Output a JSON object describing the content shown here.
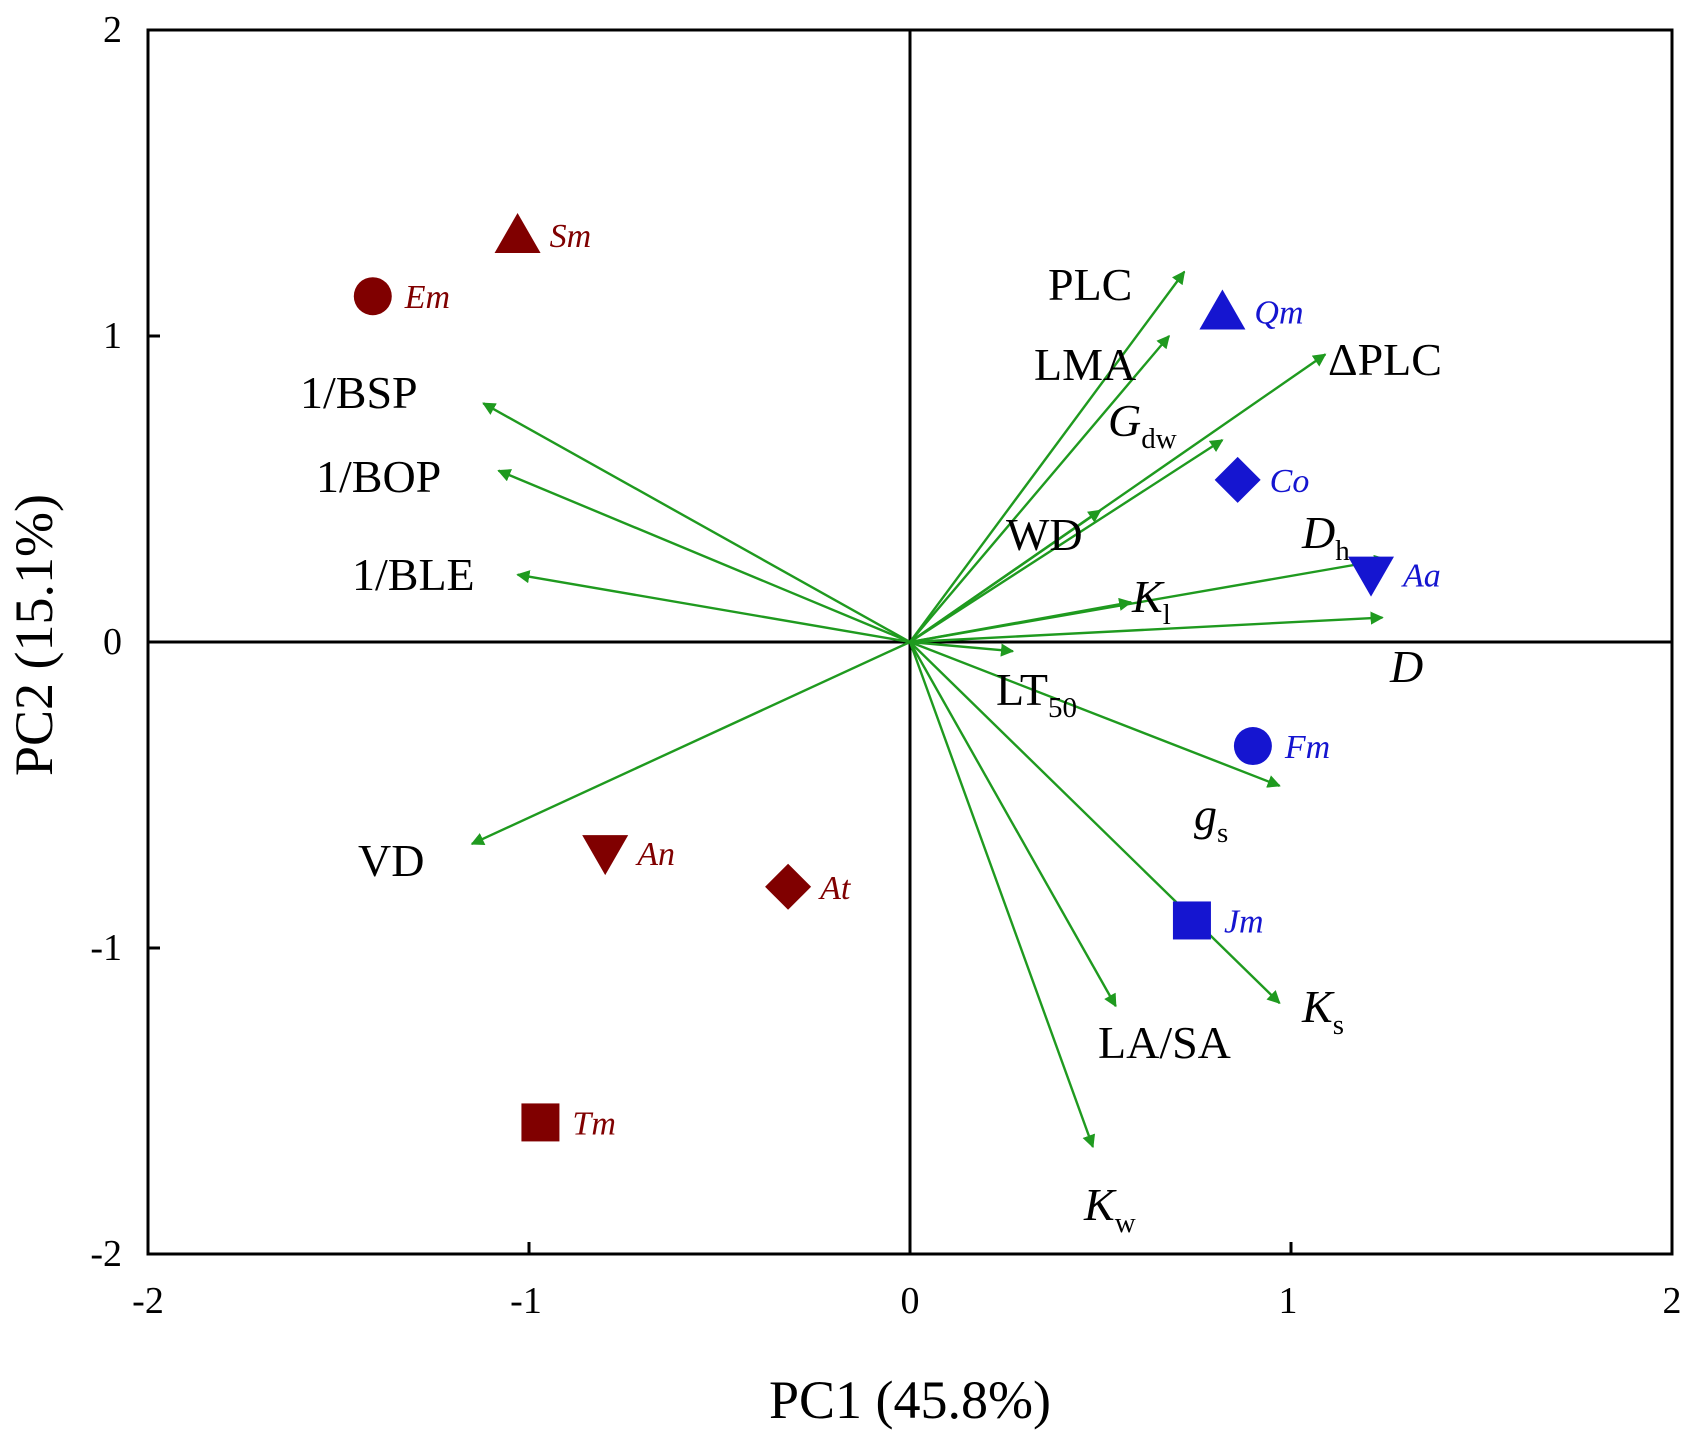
{
  "chart_data": {
    "type": "scatter",
    "xlabel": "PC1 (45.8%)",
    "ylabel": "PC2 (15.1%)",
    "xlim": [
      -2,
      2
    ],
    "ylim": [
      -2,
      2
    ],
    "xticks": [
      "-2",
      "-1",
      "0",
      "1",
      "2"
    ],
    "yticks": [
      "2",
      "1",
      "0",
      "-1",
      "-2"
    ],
    "colors": {
      "arrow": "#1f9a1f",
      "group_dark_red": "#800000",
      "group_blue": "#1515d0"
    },
    "species": [
      {
        "label": "Sm",
        "x": -1.03,
        "y": 1.33,
        "marker": "triangle-up",
        "color": "#800000"
      },
      {
        "label": "Em",
        "x": -1.41,
        "y": 1.13,
        "marker": "circle",
        "color": "#800000"
      },
      {
        "label": "An",
        "x": -0.8,
        "y": -0.69,
        "marker": "triangle-down",
        "color": "#800000"
      },
      {
        "label": "At",
        "x": -0.32,
        "y": -0.8,
        "marker": "diamond",
        "color": "#800000"
      },
      {
        "label": "Tm",
        "x": -0.97,
        "y": -1.57,
        "marker": "square",
        "color": "#800000"
      },
      {
        "label": "Qm",
        "x": 0.82,
        "y": 1.08,
        "marker": "triangle-up",
        "color": "#1515d0"
      },
      {
        "label": "Co",
        "x": 0.86,
        "y": 0.53,
        "marker": "diamond",
        "color": "#1515d0"
      },
      {
        "label": "Aa",
        "x": 1.21,
        "y": 0.22,
        "marker": "triangle-down",
        "color": "#1515d0"
      },
      {
        "label": "Fm",
        "x": 0.9,
        "y": -0.34,
        "marker": "circle",
        "color": "#1515d0"
      },
      {
        "label": "Jm",
        "x": 0.74,
        "y": -0.91,
        "marker": "square",
        "color": "#1515d0"
      }
    ],
    "loadings": [
      {
        "name": "PLC",
        "x": 0.72,
        "y": 1.21
      },
      {
        "name": "LMA",
        "x": 0.68,
        "y": 1.0
      },
      {
        "name": "ΔPLC",
        "x": 1.09,
        "y": 0.94
      },
      {
        "name": "Gdw",
        "x": 0.82,
        "y": 0.66
      },
      {
        "name": "WD",
        "x": 0.5,
        "y": 0.43
      },
      {
        "name": "Dh",
        "x": 1.25,
        "y": 0.27
      },
      {
        "name": "Kl",
        "x": 0.58,
        "y": 0.13
      },
      {
        "name": "D",
        "x": 1.24,
        "y": 0.08
      },
      {
        "name": "LT50",
        "x": 0.27,
        "y": -0.03
      },
      {
        "name": "gs",
        "x": 0.97,
        "y": -0.47
      },
      {
        "name": "Ks",
        "x": 0.97,
        "y": -1.18
      },
      {
        "name": "LA/SA",
        "x": 0.54,
        "y": -1.19
      },
      {
        "name": "Kw",
        "x": 0.48,
        "y": -1.65
      },
      {
        "name": "1/BSP",
        "x": -1.12,
        "y": 0.78
      },
      {
        "name": "1/BOP",
        "x": -1.08,
        "y": 0.56
      },
      {
        "name": "1/BLE",
        "x": -1.03,
        "y": 0.22
      },
      {
        "name": "VD",
        "x": -1.15,
        "y": -0.66
      }
    ],
    "variable_labels": [
      {
        "main": "PLC",
        "sub": "",
        "italic": false
      },
      {
        "main": "LMA",
        "sub": "",
        "italic": false
      },
      {
        "main": "ΔPLC",
        "sub": "",
        "italic": false
      },
      {
        "main": "G",
        "sub": "dw",
        "italic": true
      },
      {
        "main": "WD",
        "sub": "",
        "italic": false
      },
      {
        "main": "D",
        "sub": "h",
        "italic": true
      },
      {
        "main": "K",
        "sub": "l",
        "italic": true
      },
      {
        "main": "D",
        "sub": "",
        "italic": true
      },
      {
        "main": "LT",
        "sub": "50",
        "italic": false
      },
      {
        "main": "g",
        "sub": "s",
        "italic": true
      },
      {
        "main": "K",
        "sub": "s",
        "italic": true
      },
      {
        "main": "LA/SA",
        "sub": "",
        "italic": false
      },
      {
        "main": "K",
        "sub": "w",
        "italic": true
      },
      {
        "main": "1/BSP",
        "sub": "",
        "italic": false
      },
      {
        "main": "1/BOP",
        "sub": "",
        "italic": false
      },
      {
        "main": "1/BLE",
        "sub": "",
        "italic": false
      },
      {
        "main": "VD",
        "sub": "",
        "italic": false
      }
    ]
  }
}
